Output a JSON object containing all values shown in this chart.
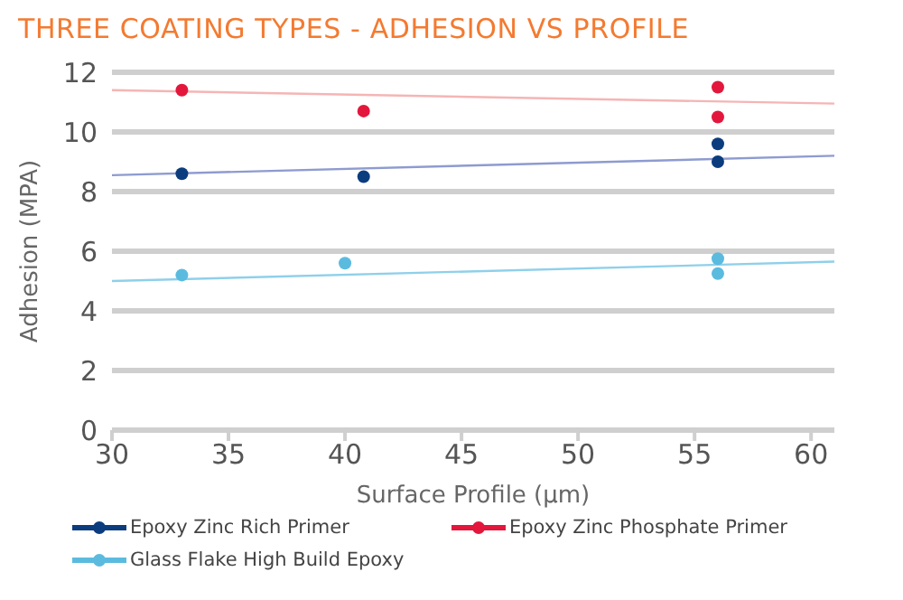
{
  "chart_data": {
    "type": "scatter",
    "title": "THREE COATING TYPES - ADHESION VS PROFILE",
    "xlabel": "Surface Profile (µm)",
    "ylabel": "Adhesion (MPA)",
    "xlim": [
      30,
      61
    ],
    "xticks": [
      30,
      35,
      40,
      45,
      50,
      55,
      60
    ],
    "ylim": [
      0,
      12
    ],
    "yticks": [
      0,
      2,
      4,
      6,
      8,
      10,
      12
    ],
    "grid": "y",
    "legend": "bottom",
    "marker": "circle",
    "series": [
      {
        "name": "Epoxy Zinc Rich Primer",
        "color": "#0b3d7e",
        "x": [
          33,
          40.8,
          56,
          56
        ],
        "values": [
          8.6,
          8.5,
          9.6,
          9.0
        ]
      },
      {
        "name": "Epoxy Zinc Phosphate Primer",
        "color": "#e3173c",
        "x": [
          33,
          40.8,
          56,
          56
        ],
        "values": [
          11.4,
          10.7,
          11.5,
          10.5
        ]
      },
      {
        "name": "Glass Flake High Build Epoxy",
        "color": "#5bbbdf",
        "x": [
          33,
          40,
          56,
          56
        ],
        "values": [
          5.2,
          5.6,
          5.75,
          5.25
        ]
      },
      {
        "type": "line",
        "marker": "none",
        "color": "#8e9bd0",
        "x": [
          30,
          61
        ],
        "values": [
          8.55,
          9.2
        ]
      },
      {
        "type": "line",
        "marker": "none",
        "color": "#f5b5b5",
        "x": [
          30,
          61
        ],
        "values": [
          11.4,
          10.95
        ]
      },
      {
        "type": "line",
        "marker": "none",
        "color": "#8fd0ea",
        "x": [
          30,
          61
        ],
        "values": [
          5.0,
          5.65
        ]
      }
    ]
  }
}
